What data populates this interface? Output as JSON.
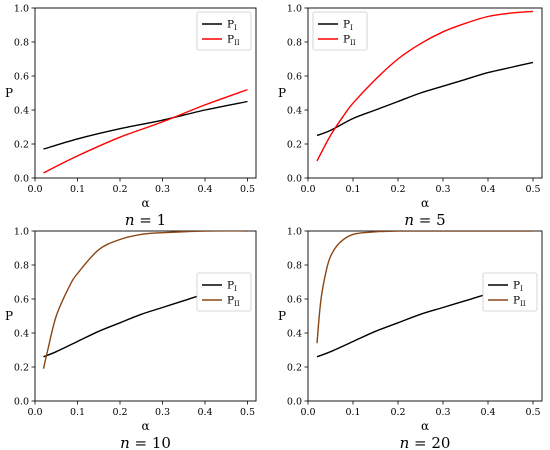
{
  "figure": {
    "colors": {
      "axis": "#000000",
      "legend_border": "#cccccc"
    }
  },
  "chart_data": [
    {
      "type": "line",
      "caption": {
        "var": "n",
        "eq": " = ",
        "value": "1"
      },
      "xlabel": "α",
      "ylabel": "P",
      "xlim": [
        0.0,
        0.52
      ],
      "ylim": [
        0.0,
        1.0
      ],
      "xticks": [
        0.0,
        0.1,
        0.2,
        0.3,
        0.4,
        0.5
      ],
      "yticks": [
        0.0,
        0.2,
        0.4,
        0.6,
        0.8,
        1.0
      ],
      "grid": false,
      "legend_position": "top-right",
      "series": [
        {
          "name": "P",
          "subscript": "I",
          "color": "#000000",
          "x": [
            0.02,
            0.1,
            0.2,
            0.3,
            0.4,
            0.5
          ],
          "y": [
            0.17,
            0.23,
            0.29,
            0.34,
            0.4,
            0.45
          ]
        },
        {
          "name": "P",
          "subscript": "II",
          "color": "#ff0000",
          "x": [
            0.02,
            0.1,
            0.2,
            0.3,
            0.4,
            0.5
          ],
          "y": [
            0.03,
            0.13,
            0.24,
            0.33,
            0.43,
            0.52
          ]
        }
      ]
    },
    {
      "type": "line",
      "caption": {
        "var": "n",
        "eq": " = ",
        "value": "5"
      },
      "xlabel": "α",
      "ylabel": "P",
      "xlim": [
        0.0,
        0.52
      ],
      "ylim": [
        0.0,
        1.0
      ],
      "xticks": [
        0.0,
        0.1,
        0.2,
        0.3,
        0.4,
        0.5
      ],
      "yticks": [
        0.0,
        0.2,
        0.4,
        0.6,
        0.8,
        1.0
      ],
      "grid": false,
      "legend_position": "top-left",
      "series": [
        {
          "name": "P",
          "subscript": "I",
          "color": "#000000",
          "x": [
            0.02,
            0.05,
            0.1,
            0.15,
            0.2,
            0.25,
            0.3,
            0.35,
            0.4,
            0.45,
            0.5
          ],
          "y": [
            0.25,
            0.28,
            0.35,
            0.4,
            0.45,
            0.5,
            0.54,
            0.58,
            0.62,
            0.65,
            0.68
          ]
        },
        {
          "name": "P",
          "subscript": "II",
          "color": "#ff0000",
          "x": [
            0.02,
            0.05,
            0.08,
            0.1,
            0.15,
            0.2,
            0.25,
            0.3,
            0.35,
            0.4,
            0.45,
            0.5
          ],
          "y": [
            0.1,
            0.25,
            0.37,
            0.44,
            0.58,
            0.7,
            0.79,
            0.86,
            0.91,
            0.95,
            0.97,
            0.98
          ]
        }
      ]
    },
    {
      "type": "line",
      "caption": {
        "var": "n",
        "eq": " = ",
        "value": "10"
      },
      "xlabel": "α",
      "ylabel": "P",
      "xlim": [
        0.0,
        0.52
      ],
      "ylim": [
        0.0,
        1.0
      ],
      "xticks": [
        0.0,
        0.1,
        0.2,
        0.3,
        0.4,
        0.5
      ],
      "yticks": [
        0.0,
        0.2,
        0.4,
        0.6,
        0.8,
        1.0
      ],
      "grid": false,
      "legend_position": "right",
      "series": [
        {
          "name": "P",
          "subscript": "I",
          "color": "#000000",
          "x": [
            0.02,
            0.05,
            0.1,
            0.15,
            0.2,
            0.25,
            0.3,
            0.35,
            0.4,
            0.45,
            0.5
          ],
          "y": [
            0.26,
            0.29,
            0.35,
            0.41,
            0.46,
            0.51,
            0.55,
            0.59,
            0.63,
            0.66,
            0.69
          ]
        },
        {
          "name": "P",
          "subscript": "II",
          "color": "#8b4513",
          "x": [
            0.02,
            0.03,
            0.05,
            0.08,
            0.1,
            0.15,
            0.2,
            0.25,
            0.3,
            0.4,
            0.5
          ],
          "y": [
            0.19,
            0.3,
            0.5,
            0.67,
            0.75,
            0.89,
            0.95,
            0.98,
            0.99,
            1.0,
            1.0
          ]
        }
      ]
    },
    {
      "type": "line",
      "caption": {
        "var": "n",
        "eq": " = ",
        "value": "20"
      },
      "xlabel": "α",
      "ylabel": "P",
      "xlim": [
        0.0,
        0.52
      ],
      "ylim": [
        0.0,
        1.0
      ],
      "xticks": [
        0.0,
        0.1,
        0.2,
        0.3,
        0.4,
        0.5
      ],
      "yticks": [
        0.0,
        0.2,
        0.4,
        0.6,
        0.8,
        1.0
      ],
      "grid": false,
      "legend_position": "right",
      "series": [
        {
          "name": "P",
          "subscript": "I",
          "color": "#000000",
          "x": [
            0.02,
            0.05,
            0.1,
            0.15,
            0.2,
            0.25,
            0.3,
            0.35,
            0.4,
            0.45,
            0.5
          ],
          "y": [
            0.26,
            0.29,
            0.35,
            0.41,
            0.46,
            0.51,
            0.55,
            0.59,
            0.63,
            0.66,
            0.7
          ]
        },
        {
          "name": "P",
          "subscript": "II",
          "color": "#8b4513",
          "x": [
            0.02,
            0.025,
            0.03,
            0.04,
            0.05,
            0.07,
            0.1,
            0.15,
            0.2,
            0.3,
            0.5
          ],
          "y": [
            0.34,
            0.5,
            0.62,
            0.76,
            0.85,
            0.93,
            0.98,
            0.995,
            1.0,
            1.0,
            1.0
          ]
        }
      ]
    }
  ]
}
